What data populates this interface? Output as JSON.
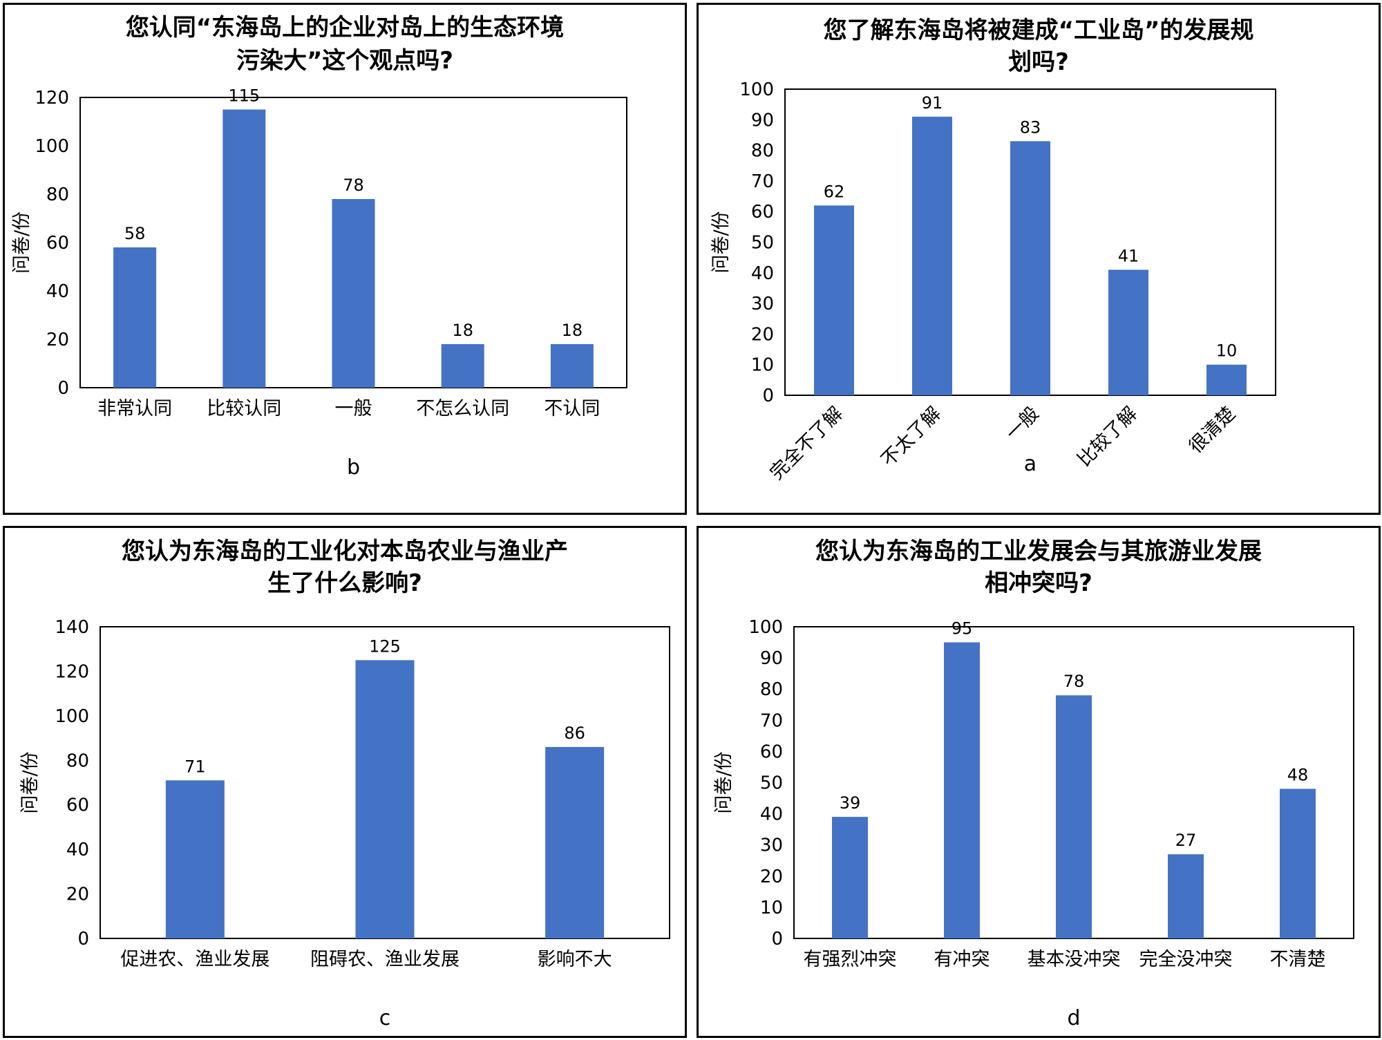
{
  "chart_data": [
    {
      "id": "b",
      "type": "bar",
      "title_lines": [
        "您认同“东海岛上的企业对岛上的生态环境",
        "污染大”这个观点吗?"
      ],
      "ylabel": "问卷/份",
      "xlabel": "b",
      "categories": [
        "非常认同",
        "比较认同",
        "一般",
        "不怎么认同",
        "不认同"
      ],
      "values": [
        58,
        115,
        78,
        18,
        18
      ],
      "ylim": [
        0,
        120
      ],
      "yticks": [
        0,
        20,
        40,
        60,
        80,
        100,
        120
      ],
      "bar_color": "#4472C4",
      "rotated_labels": false,
      "grid": false
    },
    {
      "id": "a",
      "type": "bar",
      "title_lines": [
        "您了解东海岛将被建成“工业岛”的发展规",
        "划吗?"
      ],
      "ylabel": "问卷/份",
      "xlabel": "a",
      "categories": [
        "完全不了解",
        "不太了解",
        "一般",
        "比较了解",
        "很清楚"
      ],
      "values": [
        62,
        91,
        83,
        41,
        10
      ],
      "ylim": [
        0,
        100
      ],
      "yticks": [
        0,
        10,
        20,
        30,
        40,
        50,
        60,
        70,
        80,
        90,
        100
      ],
      "bar_color": "#4472C4",
      "rotated_labels": true,
      "grid": false
    },
    {
      "id": "c",
      "type": "bar",
      "title_lines": [
        "您认为东海岛的工业化对本岛农业与渔业产",
        "生了什么影响?"
      ],
      "ylabel": "问卷/份",
      "xlabel": "c",
      "categories": [
        "促进农、渔业发展",
        "阻碍农、渔业发展",
        "影响不大"
      ],
      "values": [
        71,
        125,
        86
      ],
      "ylim": [
        0,
        140
      ],
      "yticks": [
        0,
        20,
        40,
        60,
        80,
        100,
        120,
        140
      ],
      "bar_color": "#4472C4",
      "rotated_labels": false,
      "grid": false
    },
    {
      "id": "d",
      "type": "bar",
      "title_lines": [
        "您认为东海岛的工业发展会与其旅游业发展",
        "相冲突吗?"
      ],
      "ylabel": "问卷/份",
      "xlabel": "d",
      "categories": [
        "有强烈冲突",
        "有冲突",
        "基本没冲突",
        "完全没冲突",
        "不清楚"
      ],
      "values": [
        39,
        95,
        78,
        27,
        48
      ],
      "ylim": [
        0,
        100
      ],
      "yticks": [
        0,
        10,
        20,
        30,
        40,
        50,
        60,
        70,
        80,
        90,
        100
      ],
      "bar_color": "#4472C4",
      "rotated_labels": false,
      "grid": false
    }
  ]
}
